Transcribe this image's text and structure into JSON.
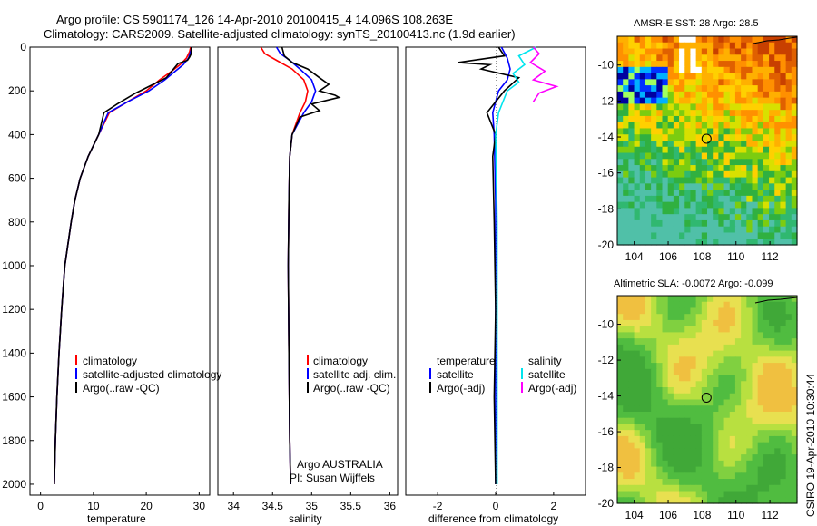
{
  "figure": {
    "title_line1": "Argo profile: CS 5901174_126 14-Apr-2010 20100415_4 14.096S 108.263E",
    "title_line2": "Climatology: CARS2009. Satellite-adjusted climatology: synTS_20100413.nc (1.9d earlier)",
    "footer": "CSIRO 19-Apr-2010 10:30:44"
  },
  "colors": {
    "climatology": "#ff0000",
    "satellite": "#0000ff",
    "argo": "#000000",
    "salinity_satellite": "#00e5ee",
    "salinity_argo": "#ff00ff"
  },
  "chart_data": [
    {
      "type": "line",
      "id": "temperature",
      "xlabel": "temperature",
      "ylabel": "",
      "xlim": [
        -2,
        32
      ],
      "ylim": [
        2050,
        0
      ],
      "xticks": [
        0,
        10,
        20,
        30
      ],
      "yticks": [
        0,
        200,
        400,
        600,
        800,
        1000,
        1200,
        1400,
        1600,
        1800,
        2000
      ],
      "legend": [
        "climatology",
        "satellite-adjusted climatology",
        "Argo(..raw -QC)"
      ],
      "series": [
        {
          "name": "climatology",
          "color": "#ff0000",
          "x": [
            28.4,
            28.2,
            27.6,
            26.4,
            24.8,
            22.5,
            20.0,
            16.5,
            13.0,
            11.0,
            9.0,
            7.5,
            6.5,
            5.8,
            5.2,
            4.6,
            4.0,
            3.5,
            3.1,
            2.8,
            2.6
          ],
          "y": [
            0,
            20,
            50,
            80,
            110,
            150,
            200,
            250,
            300,
            400,
            500,
            600,
            700,
            800,
            900,
            1000,
            1200,
            1400,
            1600,
            1800,
            2000
          ]
        },
        {
          "name": "satellite-adjusted climatology",
          "color": "#0000ff",
          "x": [
            28.6,
            28.4,
            28.0,
            27.0,
            25.5,
            23.5,
            20.5,
            16.5,
            12.8,
            11.0,
            9.0,
            7.5,
            6.5,
            5.8,
            5.2,
            4.6,
            4.0,
            3.5,
            3.1,
            2.8,
            2.6
          ],
          "y": [
            0,
            20,
            50,
            80,
            110,
            150,
            200,
            250,
            300,
            400,
            500,
            600,
            700,
            800,
            900,
            1000,
            1200,
            1400,
            1600,
            1800,
            2000
          ]
        },
        {
          "name": "Argo(..raw -QC)",
          "color": "#000000",
          "x": [
            28.5,
            28.5,
            28.2,
            27.8,
            26.0,
            25.5,
            23.8,
            20.5,
            18.0,
            14.5,
            12.0,
            11.0,
            9.0,
            7.5,
            6.5,
            5.8,
            5.2,
            4.6,
            4.0,
            3.5,
            3.1,
            2.8,
            2.6
          ],
          "y": [
            0,
            30,
            45,
            60,
            75,
            90,
            140,
            180,
            210,
            260,
            300,
            400,
            500,
            600,
            700,
            800,
            900,
            1000,
            1200,
            1400,
            1600,
            1800,
            2000
          ]
        }
      ]
    },
    {
      "type": "line",
      "id": "salinity",
      "xlabel": "salinity",
      "ylabel": "",
      "xlim": [
        33.8,
        36.1
      ],
      "ylim": [
        2050,
        0
      ],
      "xticks": [
        34,
        34.5,
        35,
        35.5,
        36
      ],
      "yticks": [],
      "legend": [
        "climatology",
        "satellite adj. clim.",
        "Argo(..raw -QC)"
      ],
      "annotations": [
        "Argo AUSTRALIA",
        "PI: Susan Wijffels"
      ],
      "series": [
        {
          "name": "climatology",
          "color": "#ff0000",
          "x": [
            34.35,
            34.4,
            34.55,
            34.75,
            34.9,
            34.95,
            34.92,
            34.85,
            34.75,
            34.72,
            34.71,
            34.7,
            34.71,
            34.72,
            34.73
          ],
          "y": [
            0,
            30,
            60,
            100,
            150,
            200,
            250,
            300,
            400,
            500,
            700,
            1000,
            1400,
            1800,
            2000
          ]
        },
        {
          "name": "satellite adj. clim.",
          "color": "#0000ff",
          "x": [
            34.55,
            34.6,
            34.72,
            34.85,
            35.0,
            35.05,
            35.0,
            34.9,
            34.75,
            34.72,
            34.71,
            34.7,
            34.71,
            34.72,
            34.73
          ],
          "y": [
            0,
            30,
            60,
            100,
            150,
            200,
            250,
            300,
            400,
            500,
            700,
            1000,
            1400,
            1800,
            2000
          ]
        },
        {
          "name": "Argo(..raw -QC)",
          "color": "#000000",
          "x": [
            34.62,
            34.65,
            34.75,
            34.95,
            35.1,
            35.22,
            35.1,
            35.3,
            35.35,
            35.0,
            35.1,
            34.85,
            34.75,
            34.72,
            34.71,
            34.7,
            34.71,
            34.72,
            34.73
          ],
          "y": [
            0,
            40,
            70,
            100,
            140,
            170,
            200,
            220,
            230,
            260,
            290,
            320,
            400,
            500,
            700,
            1000,
            1400,
            1800,
            2000
          ]
        }
      ]
    },
    {
      "type": "line",
      "id": "difference",
      "xlabel": "difference from climatology",
      "ylabel": "",
      "xlim": [
        -3.1,
        3.1
      ],
      "ylim": [
        2050,
        0
      ],
      "xticks": [
        -2,
        0,
        2
      ],
      "yticks": [],
      "legend_headers": [
        "temperature",
        "salinity"
      ],
      "legend": [
        "satellite",
        "Argo(-adj)",
        "satellite",
        "Argo(-adj)"
      ],
      "series": [
        {
          "name": "temperature satellite",
          "color": "#0000ff",
          "x": [
            0.2,
            0.4,
            0.5,
            0.4,
            0.1,
            -0.1,
            -0.05,
            0.0,
            0.0,
            0.0,
            0.0
          ],
          "y": [
            0,
            50,
            100,
            150,
            200,
            300,
            400,
            700,
            1000,
            1500,
            2000
          ]
        },
        {
          "name": "temperature Argo(-adj)",
          "color": "#000000",
          "x": [
            0.1,
            0.3,
            -1.3,
            -0.2,
            -0.5,
            0.8,
            0.3,
            -0.3,
            0.0,
            -0.1,
            -0.05,
            0.0,
            -0.05,
            0.0
          ],
          "y": [
            0,
            40,
            70,
            80,
            100,
            140,
            200,
            300,
            400,
            500,
            800,
            1200,
            1600,
            2000
          ]
        },
        {
          "name": "salinity satellite",
          "color": "#00e5ee",
          "x": [
            1.4,
            0.8,
            1.0,
            0.6,
            0.8,
            0.4,
            0.1,
            0.0,
            0.05,
            0.05,
            0.05
          ],
          "y": [
            0,
            40,
            80,
            120,
            160,
            200,
            300,
            400,
            800,
            1400,
            2000
          ]
        },
        {
          "name": "salinity Argo(-adj)",
          "color": "#ff00ff",
          "x": [
            1.3,
            1.5,
            1.2,
            1.7,
            1.3,
            2.1,
            1.5,
            1.3
          ],
          "y": [
            0,
            30,
            70,
            110,
            150,
            180,
            210,
            250
          ]
        }
      ]
    },
    {
      "type": "heatmap",
      "id": "sst_map",
      "title": "AMSR-E SST: 28 Argo: 28.5",
      "xlim": [
        103,
        113.6
      ],
      "ylim": [
        -20,
        -8.4
      ],
      "xticks": [
        104,
        106,
        108,
        110,
        112
      ],
      "yticks": [
        -10,
        -12,
        -14,
        -16,
        -18,
        -20
      ],
      "marker": {
        "lon": 108.263,
        "lat": -14.096
      }
    },
    {
      "type": "heatmap",
      "id": "sla_map",
      "title": "Altimetric SLA: -0.0072 Argo: -0.099",
      "xlim": [
        103,
        113.6
      ],
      "ylim": [
        -20,
        -8.4
      ],
      "xticks": [
        104,
        106,
        108,
        110,
        112
      ],
      "yticks": [
        -10,
        -12,
        -14,
        -16,
        -18,
        -20
      ],
      "marker": {
        "lon": 108.263,
        "lat": -14.096
      }
    }
  ]
}
